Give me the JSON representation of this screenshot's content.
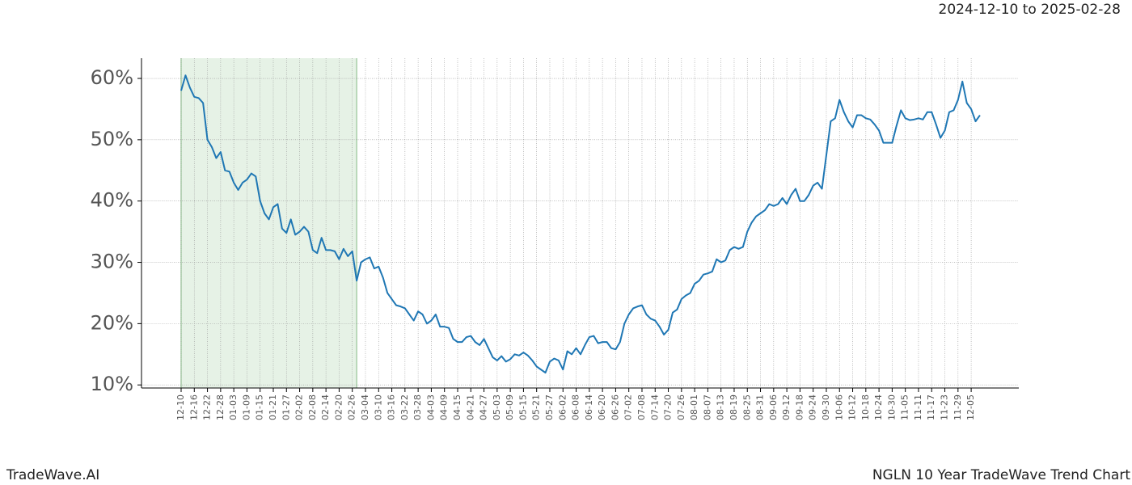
{
  "chart_data": {
    "type": "line",
    "title": "2024-12-10 to 2025-02-28",
    "footer_left": "TradeWave.AI",
    "footer_right": "NGLN 10 Year TradeWave Trend Chart",
    "color": "#1f77b4",
    "shade_color": "#e6f2e6",
    "shade_span": [
      0,
      40
    ],
    "grid": true,
    "ylim": [
      9.5,
      63.3
    ],
    "yticks": [
      {
        "value": 10,
        "label": "10%"
      },
      {
        "value": 20,
        "label": "20%"
      },
      {
        "value": 30,
        "label": "30%"
      },
      {
        "value": 40,
        "label": "40%"
      },
      {
        "value": 50,
        "label": "50%"
      },
      {
        "value": 60,
        "label": "60%"
      }
    ],
    "categories": [
      "12-10",
      null,
      null,
      "12-16",
      null,
      null,
      "12-22",
      null,
      null,
      "12-28",
      null,
      null,
      "01-03",
      null,
      null,
      "01-09",
      null,
      null,
      "01-15",
      null,
      null,
      "01-21",
      null,
      null,
      "01-27",
      null,
      null,
      "02-02",
      null,
      null,
      "02-08",
      null,
      null,
      "02-14",
      null,
      null,
      "02-20",
      null,
      null,
      "02-26",
      null,
      null,
      "03-04",
      null,
      null,
      "03-10",
      null,
      null,
      "03-16",
      null,
      null,
      "03-22",
      null,
      null,
      "03-28",
      null,
      null,
      "04-03",
      null,
      null,
      "04-09",
      null,
      null,
      "04-15",
      null,
      null,
      "04-21",
      null,
      null,
      "04-27",
      null,
      null,
      "05-03",
      null,
      null,
      "05-09",
      null,
      null,
      "05-15",
      null,
      null,
      "05-21",
      null,
      null,
      "05-27",
      null,
      null,
      "06-02",
      null,
      null,
      "06-08",
      null,
      null,
      "06-14",
      null,
      null,
      "06-20",
      null,
      null,
      "06-26",
      null,
      null,
      "07-02",
      null,
      null,
      "07-08",
      null,
      null,
      "07-14",
      null,
      null,
      "07-20",
      null,
      null,
      "07-26",
      null,
      null,
      "08-01",
      null,
      null,
      "08-07",
      null,
      null,
      "08-13",
      null,
      null,
      "08-19",
      null,
      null,
      "08-25",
      null,
      null,
      "08-31",
      null,
      null,
      "09-06",
      null,
      null,
      "09-12",
      null,
      null,
      "09-18",
      null,
      null,
      "09-24",
      null,
      null,
      "09-30",
      null,
      null,
      "10-06",
      null,
      null,
      "10-12",
      null,
      null,
      "10-18",
      null,
      null,
      "10-24",
      null,
      null,
      "10-30",
      null,
      null,
      "11-05",
      null,
      null,
      "11-11",
      null,
      null,
      "11-17",
      null,
      null,
      "11-23",
      null,
      null,
      "11-29",
      null,
      null,
      "12-05",
      null,
      null
    ],
    "values": [
      58,
      60.5,
      58.5,
      57,
      56.8,
      56,
      50,
      48.8,
      47,
      48,
      45,
      44.8,
      43,
      41.8,
      43,
      43.5,
      44.5,
      44,
      40,
      38,
      37,
      39,
      39.5,
      35.5,
      34.8,
      37,
      34.5,
      35,
      35.8,
      35,
      32,
      31.5,
      34,
      32,
      32,
      31.8,
      30.5,
      32.2,
      31,
      31.8,
      27,
      30,
      30.5,
      30.8,
      29,
      29.3,
      27.5,
      25,
      24,
      23,
      22.8,
      22.5,
      21.5,
      20.5,
      22,
      21.5,
      20,
      20.5,
      21.5,
      19.5,
      19.5,
      19.3,
      17.5,
      17,
      17,
      17.8,
      18,
      17,
      16.5,
      17.5,
      16,
      14.5,
      14,
      14.7,
      13.8,
      14.2,
      15,
      14.8,
      15.3,
      14.8,
      14,
      13,
      12.5,
      12,
      13.8,
      14.3,
      14,
      12.5,
      15.5,
      15,
      16,
      15,
      16.5,
      17.8,
      18,
      16.8,
      17,
      17,
      16,
      15.8,
      17,
      20,
      21.5,
      22.5,
      22.8,
      23,
      21.5,
      20.8,
      20.5,
      19.5,
      18.2,
      19,
      21.8,
      22.3,
      24,
      24.6,
      25,
      26.5,
      27,
      28,
      28.2,
      28.5,
      30.5,
      30,
      30.3,
      32,
      32.5,
      32.2,
      32.5,
      35,
      36.5,
      37.5,
      38,
      38.5,
      39.5,
      39.2,
      39.5,
      40.5,
      39.5,
      41,
      42,
      40,
      40,
      41,
      42.5,
      43,
      42,
      47.5,
      53,
      53.5,
      56.5,
      54.5,
      53,
      52,
      54,
      54,
      53.5,
      53.3,
      52.5,
      51.5,
      49.5,
      49.5,
      49.5,
      52.3,
      54.8,
      53.5,
      53.2,
      53.3,
      53.5,
      53.3,
      54.5,
      54.5,
      52.5,
      50.3,
      51.5,
      54.5,
      54.8,
      56.5,
      59.5,
      56,
      55,
      53,
      54
    ]
  }
}
